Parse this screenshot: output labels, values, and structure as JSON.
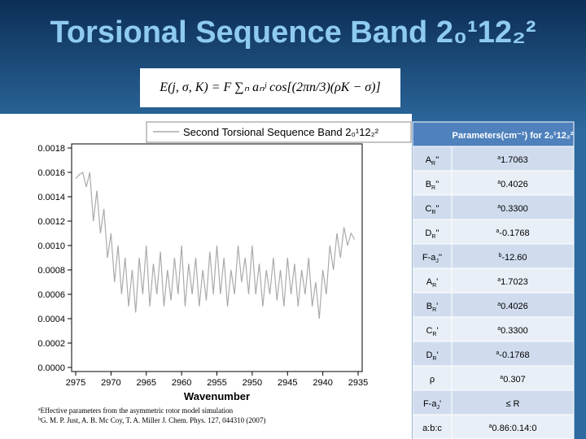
{
  "header": {
    "title": "Torsional Sequence Band 2₀¹12₂²",
    "equation": "E(j, σ, K) = F ∑ₙ aₙʲ cos[(2πn/3)(ρK − σ)]"
  },
  "chart_data": {
    "type": "line",
    "x_label": "Wavenumber",
    "x": [
      2975,
      2974.5,
      2974,
      2973.5,
      2973,
      2972.5,
      2972,
      2971.5,
      2971,
      2970.5,
      2970,
      2969.5,
      2969,
      2968.5,
      2968,
      2967.5,
      2967,
      2966.5,
      2966,
      2965.5,
      2965,
      2964.5,
      2964,
      2963.5,
      2963,
      2962.5,
      2962,
      2961.5,
      2961,
      2960.5,
      2960,
      2959.5,
      2959,
      2958.5,
      2958,
      2957.5,
      2957,
      2956.5,
      2956,
      2955.5,
      2955,
      2954.5,
      2954,
      2953.5,
      2953,
      2952.5,
      2952,
      2951.5,
      2951,
      2950.5,
      2950,
      2949.5,
      2949,
      2948.5,
      2948,
      2947.5,
      2947,
      2946.5,
      2946,
      2945.5,
      2945,
      2944.5,
      2944,
      2943.5,
      2943,
      2942.5,
      2942,
      2941.5,
      2941,
      2940.5,
      2940,
      2939.5,
      2939,
      2938.5,
      2938,
      2937.5,
      2937,
      2936.5,
      2936,
      2935.5
    ],
    "series": [
      {
        "name": "Second Torsional Sequence Band 2₀¹12₂²",
        "color": "#aaaaaa",
        "values": [
          0.00155,
          0.00158,
          0.0016,
          0.00148,
          0.0016,
          0.0012,
          0.00145,
          0.0011,
          0.0013,
          0.0009,
          0.0011,
          0.0007,
          0.001,
          0.0006,
          0.0009,
          0.0005,
          0.0008,
          0.00045,
          0.0009,
          0.0006,
          0.001,
          0.0005,
          0.00085,
          0.0006,
          0.00095,
          0.0005,
          0.0008,
          0.00055,
          0.0009,
          0.0006,
          0.001,
          0.0005,
          0.00085,
          0.0006,
          0.0009,
          0.0005,
          0.0008,
          0.00055,
          0.00095,
          0.0006,
          0.001,
          0.0006,
          0.0009,
          0.0005,
          0.0008,
          0.0006,
          0.001,
          0.0007,
          0.0009,
          0.0006,
          0.001,
          0.0006,
          0.00085,
          0.0005,
          0.0008,
          0.0006,
          0.0009,
          0.00055,
          0.0008,
          0.0005,
          0.0009,
          0.0006,
          0.00085,
          0.0005,
          0.0008,
          0.0006,
          0.0009,
          0.0005,
          0.0007,
          0.0004,
          0.0008,
          0.0006,
          0.001,
          0.0008,
          0.0011,
          0.0009,
          0.00115,
          0.001,
          0.0011,
          0.00105
        ]
      }
    ],
    "xlim": [
      2975,
      2935
    ],
    "xticks": [
      2975,
      2970,
      2965,
      2960,
      2955,
      2950,
      2945,
      2940,
      2935
    ],
    "ylim": [
      0,
      0.0018
    ],
    "yticks": [
      {
        "value": 0,
        "label": "0.0000"
      },
      {
        "value": 0.0002,
        "label": "0.0002"
      },
      {
        "value": 0.0004,
        "label": "0.0004"
      },
      {
        "value": 0.0006,
        "label": "0.0006"
      },
      {
        "value": 0.0008,
        "label": "0.0008"
      },
      {
        "value": 0.001,
        "label": "0.0010"
      },
      {
        "value": 0.0012,
        "label": "0.0012"
      },
      {
        "value": 0.0014,
        "label": "0.0014"
      },
      {
        "value": 0.0016,
        "label": "0.0016"
      },
      {
        "value": 0.0018,
        "label": "0.0018"
      }
    ],
    "legend": "top"
  },
  "table": {
    "header": "Parameters(cm⁻¹) for 2₀¹12₂²",
    "rows": [
      [
        {
          "text": "A",
          "sub": "R",
          "post": "''"
        },
        {
          "sup": "a",
          "text": "1.7063"
        }
      ],
      [
        {
          "text": "B",
          "sub": "R",
          "post": "''"
        },
        {
          "sup": "a",
          "text": "0.4026"
        }
      ],
      [
        {
          "text": "C",
          "sub": "R",
          "post": "''"
        },
        {
          "sup": "a",
          "text": "0.3300"
        }
      ],
      [
        {
          "text": "D",
          "sub": "R",
          "post": "''"
        },
        {
          "sup": "a",
          "text": "-0.1768"
        }
      ],
      [
        {
          "text": "F-a",
          "sub": "J",
          "post": "''"
        },
        {
          "sup": "b",
          "text": "-12.60"
        }
      ],
      [
        {
          "text": "A",
          "sub": "R",
          "post": "'"
        },
        {
          "sup": "a",
          "text": "1.7023"
        }
      ],
      [
        {
          "text": "B",
          "sub": "R",
          "post": "'"
        },
        {
          "sup": "a",
          "text": "0.4026"
        }
      ],
      [
        {
          "text": "C",
          "sub": "R",
          "post": "'"
        },
        {
          "sup": "a",
          "text": "0.3300"
        }
      ],
      [
        {
          "text": "D",
          "sub": "R",
          "post": "'"
        },
        {
          "sup": "a",
          "text": "-0.1768"
        }
      ],
      [
        {
          "text": "ρ"
        },
        {
          "sup": "a",
          "text": "0.307"
        }
      ],
      [
        {
          "text": "F-a",
          "sub": "J",
          "post": "'"
        },
        {
          "text": "≤ R"
        }
      ],
      [
        {
          "text": "a:b:c"
        },
        {
          "sup": "a",
          "text": "0.86:0.14:0"
        }
      ]
    ]
  },
  "footnotes": [
    {
      "sup": "a",
      "text": "Effective parameters from the asymmetric rotor model simulation"
    },
    {
      "sup": "b",
      "text": "G. M. P. Just, A. B. Mc Coy, T. A. Miller J. Chem. Phys. 127, 044310 (2007)"
    }
  ]
}
